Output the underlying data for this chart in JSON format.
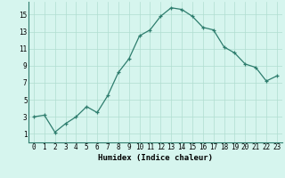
{
  "x": [
    0,
    1,
    2,
    3,
    4,
    5,
    6,
    7,
    8,
    9,
    10,
    11,
    12,
    13,
    14,
    15,
    16,
    17,
    18,
    19,
    20,
    21,
    22,
    23
  ],
  "y": [
    3.0,
    3.2,
    1.2,
    2.2,
    3.0,
    4.2,
    3.5,
    5.5,
    8.2,
    9.8,
    12.5,
    13.2,
    14.8,
    15.8,
    15.6,
    14.8,
    13.5,
    13.2,
    11.2,
    10.5,
    9.2,
    8.8,
    7.2,
    7.8
  ],
  "xlabel": "Humidex (Indice chaleur)",
  "ylim": [
    0,
    16.5
  ],
  "xlim": [
    -0.5,
    23.5
  ],
  "yticks": [
    1,
    3,
    5,
    7,
    9,
    11,
    13,
    15
  ],
  "xticks": [
    0,
    1,
    2,
    3,
    4,
    5,
    6,
    7,
    8,
    9,
    10,
    11,
    12,
    13,
    14,
    15,
    16,
    17,
    18,
    19,
    20,
    21,
    22,
    23
  ],
  "line_color": "#2e7d6e",
  "marker": "+",
  "bg_color": "#d6f5ee",
  "grid_color": "#b0ddd0",
  "tick_fontsize": 5.5,
  "xlabel_fontsize": 6.5
}
